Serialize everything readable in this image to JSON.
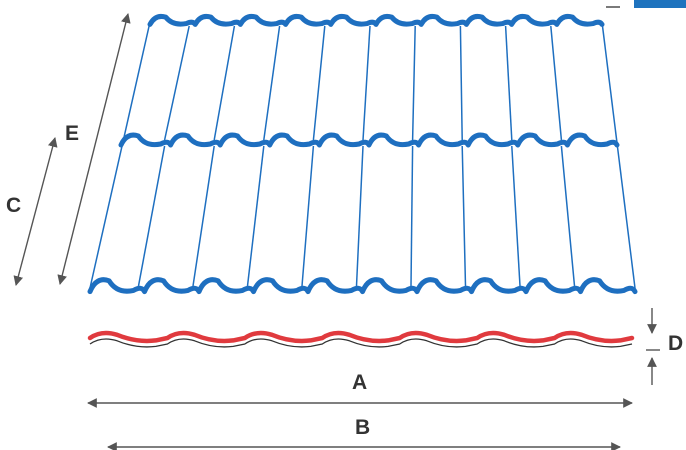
{
  "labels": {
    "a": "A",
    "b": "B",
    "c": "C",
    "d": "D",
    "e": "E"
  },
  "colors": {
    "sheet_outline": "#1e6fc0",
    "profile_top": "#e03a3e",
    "dimension_lines": "#555555",
    "label_text": "#333333"
  }
}
